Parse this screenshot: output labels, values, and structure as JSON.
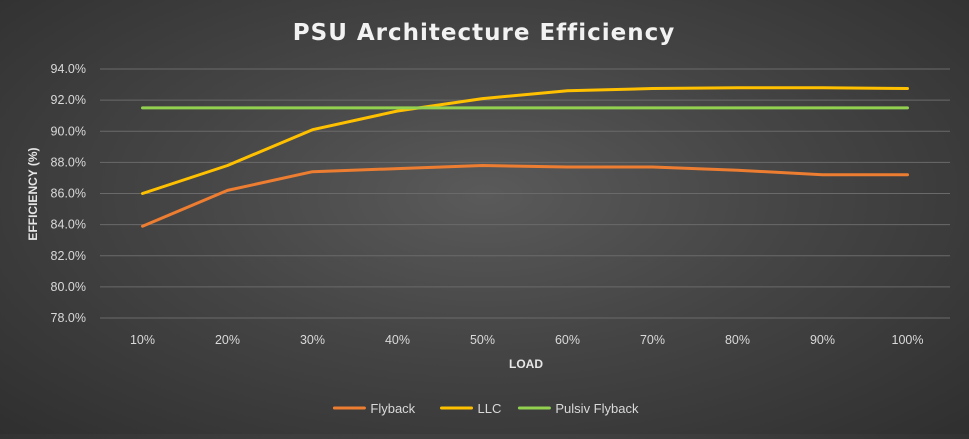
{
  "chart_data": {
    "type": "line",
    "title": "PSU Architecture Efficiency",
    "xlabel": "LOAD",
    "ylabel": "EFFICIENCY (%)",
    "categories": [
      "10%",
      "20%",
      "30%",
      "40%",
      "50%",
      "60%",
      "70%",
      "80%",
      "90%",
      "100%"
    ],
    "ylim": [
      78,
      94
    ],
    "yticks": [
      78,
      80,
      82,
      84,
      86,
      88,
      90,
      92,
      94
    ],
    "ytick_labels": [
      "78.0%",
      "80.0%",
      "82.0%",
      "84.0%",
      "86.0%",
      "88.0%",
      "90.0%",
      "92.0%",
      "94.0%"
    ],
    "grid": true,
    "legend_position": "bottom",
    "series": [
      {
        "name": "Flyback",
        "color": "#ed7d31",
        "values": [
          83.9,
          86.2,
          87.4,
          87.6,
          87.8,
          87.7,
          87.7,
          87.5,
          87.2,
          87.2
        ]
      },
      {
        "name": "LLC",
        "color": "#ffc000",
        "values": [
          86.0,
          87.8,
          90.1,
          91.3,
          92.1,
          92.6,
          92.75,
          92.8,
          92.8,
          92.75
        ]
      },
      {
        "name": "Pulsiv Flyback",
        "color": "#92d050",
        "values": [
          91.5,
          91.5,
          91.5,
          91.5,
          91.5,
          91.5,
          91.5,
          91.5,
          91.5,
          91.5
        ]
      }
    ]
  }
}
